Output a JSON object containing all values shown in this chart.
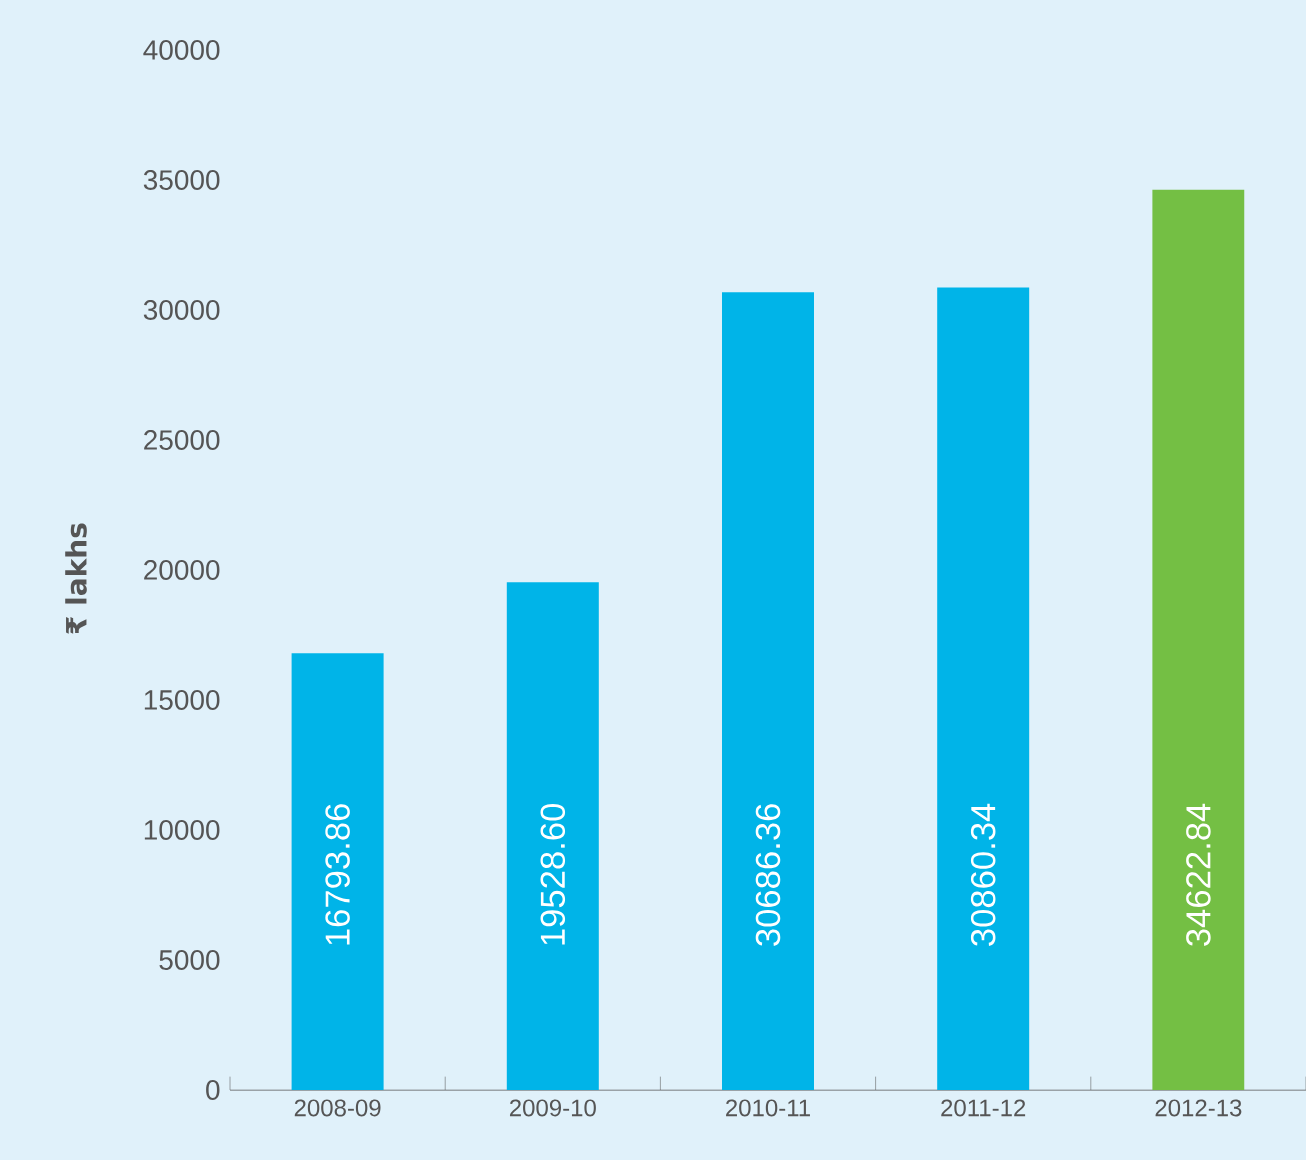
{
  "chart_data": {
    "type": "bar",
    "ylabel": "₹ lakhs",
    "categories": [
      "2008-09",
      "2009-10",
      "2010-11",
      "2011-12",
      "2012-13"
    ],
    "values": [
      16793.86,
      19528.6,
      30686.36,
      30860.34,
      34622.84
    ],
    "value_labels": [
      "16793.86",
      "19528.60",
      "30686.36",
      "30860.34",
      "34622.84"
    ],
    "colors": [
      "#00b4e8",
      "#00b4e8",
      "#00b4e8",
      "#00b4e8",
      "#74bf44"
    ],
    "ylim": [
      0,
      40000
    ],
    "yticks": [
      0,
      5000,
      10000,
      15000,
      20000,
      25000,
      30000,
      35000,
      40000
    ]
  }
}
